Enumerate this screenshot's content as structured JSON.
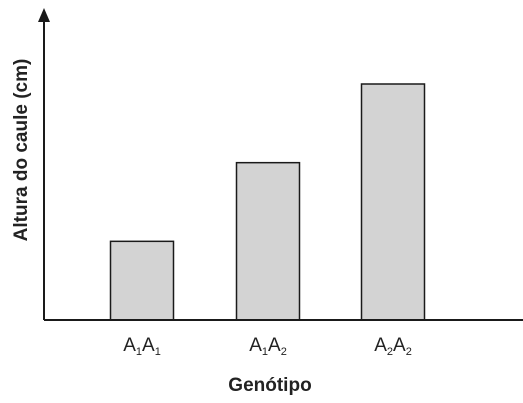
{
  "chart_data": {
    "type": "bar",
    "title": "",
    "xlabel": "Genótipo",
    "ylabel": "Altura do caule (cm)",
    "categories": [
      {
        "base": "A",
        "sub1": "1",
        "second": "A",
        "sub2": "1"
      },
      {
        "base": "A",
        "sub1": "1",
        "second": "A",
        "sub2": "2"
      },
      {
        "base": "A",
        "sub1": "2",
        "second": "A",
        "sub2": "2"
      }
    ],
    "values": [
      1,
      2,
      3
    ],
    "ylim": [
      0,
      3
    ],
    "y_ticks_shown": false,
    "grid": false,
    "legend": "none",
    "colors": {
      "bar_fill": "#d3d3d3",
      "bar_stroke": "#1a1a1a",
      "axis": "#1a1a1a"
    }
  }
}
